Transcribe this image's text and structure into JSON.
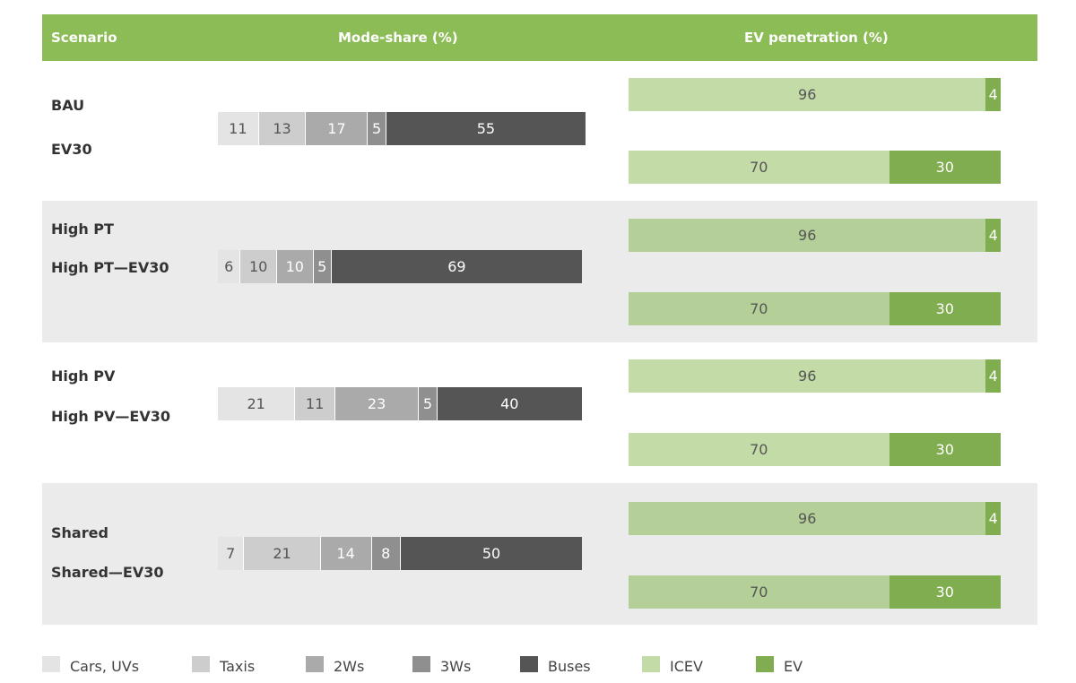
{
  "header": {
    "col1": "Scenario",
    "col2": "Mode-share (%)",
    "col3": "EV penetration (%)"
  },
  "colors": {
    "header_bg": "#8cbc55",
    "band_bg": "#ebebeb",
    "cars": "#e4e4e4",
    "taxis": "#cdcdcd",
    "twow": "#aaaaaa",
    "threew": "#8f8f8f",
    "buses": "#555555",
    "icev": "#c2dba7",
    "icev_shaded": "#b4cf98",
    "ev": "#7fad4f"
  },
  "chart_data": {
    "type": "bar",
    "subtype": "stacked-horizontal",
    "mode_share": {
      "title": "Mode-share (%)",
      "categories": [
        "BAU / EV30",
        "High PT / High PT—EV30",
        "High PV / High PV—EV30",
        "Shared / Shared—EV30"
      ],
      "series": [
        {
          "name": "Cars, UVs",
          "values": [
            11,
            6,
            21,
            7
          ]
        },
        {
          "name": "Taxis",
          "values": [
            13,
            10,
            11,
            21
          ]
        },
        {
          "name": "2Ws",
          "values": [
            17,
            10,
            23,
            14
          ]
        },
        {
          "name": "3Ws",
          "values": [
            5,
            5,
            5,
            8
          ]
        },
        {
          "name": "Buses",
          "values": [
            55,
            69,
            40,
            50
          ]
        }
      ]
    },
    "ev_penetration": {
      "title": "EV penetration (%)",
      "categories": [
        "BAU",
        "EV30",
        "High PT",
        "High PT—EV30",
        "High PV",
        "High PV—EV30",
        "Shared",
        "Shared—EV30"
      ],
      "series": [
        {
          "name": "ICEV",
          "values": [
            96,
            70,
            96,
            70,
            96,
            70,
            96,
            70
          ]
        },
        {
          "name": "EV",
          "values": [
            4,
            30,
            4,
            30,
            4,
            30,
            4,
            30
          ]
        }
      ]
    },
    "legend": [
      "Cars, UVs",
      "Taxis",
      "2Ws",
      "3Ws",
      "Buses",
      "ICEV",
      "EV"
    ],
    "legend_position": "bottom"
  },
  "groups": [
    {
      "labels": [
        "BAU",
        "EV30"
      ],
      "shaded": false
    },
    {
      "labels": [
        "High PT",
        "High PT—EV30"
      ],
      "shaded": true
    },
    {
      "labels": [
        "High PV",
        "High PV—EV30"
      ],
      "shaded": false
    },
    {
      "labels": [
        "Shared",
        "Shared—EV30"
      ],
      "shaded": true
    }
  ]
}
